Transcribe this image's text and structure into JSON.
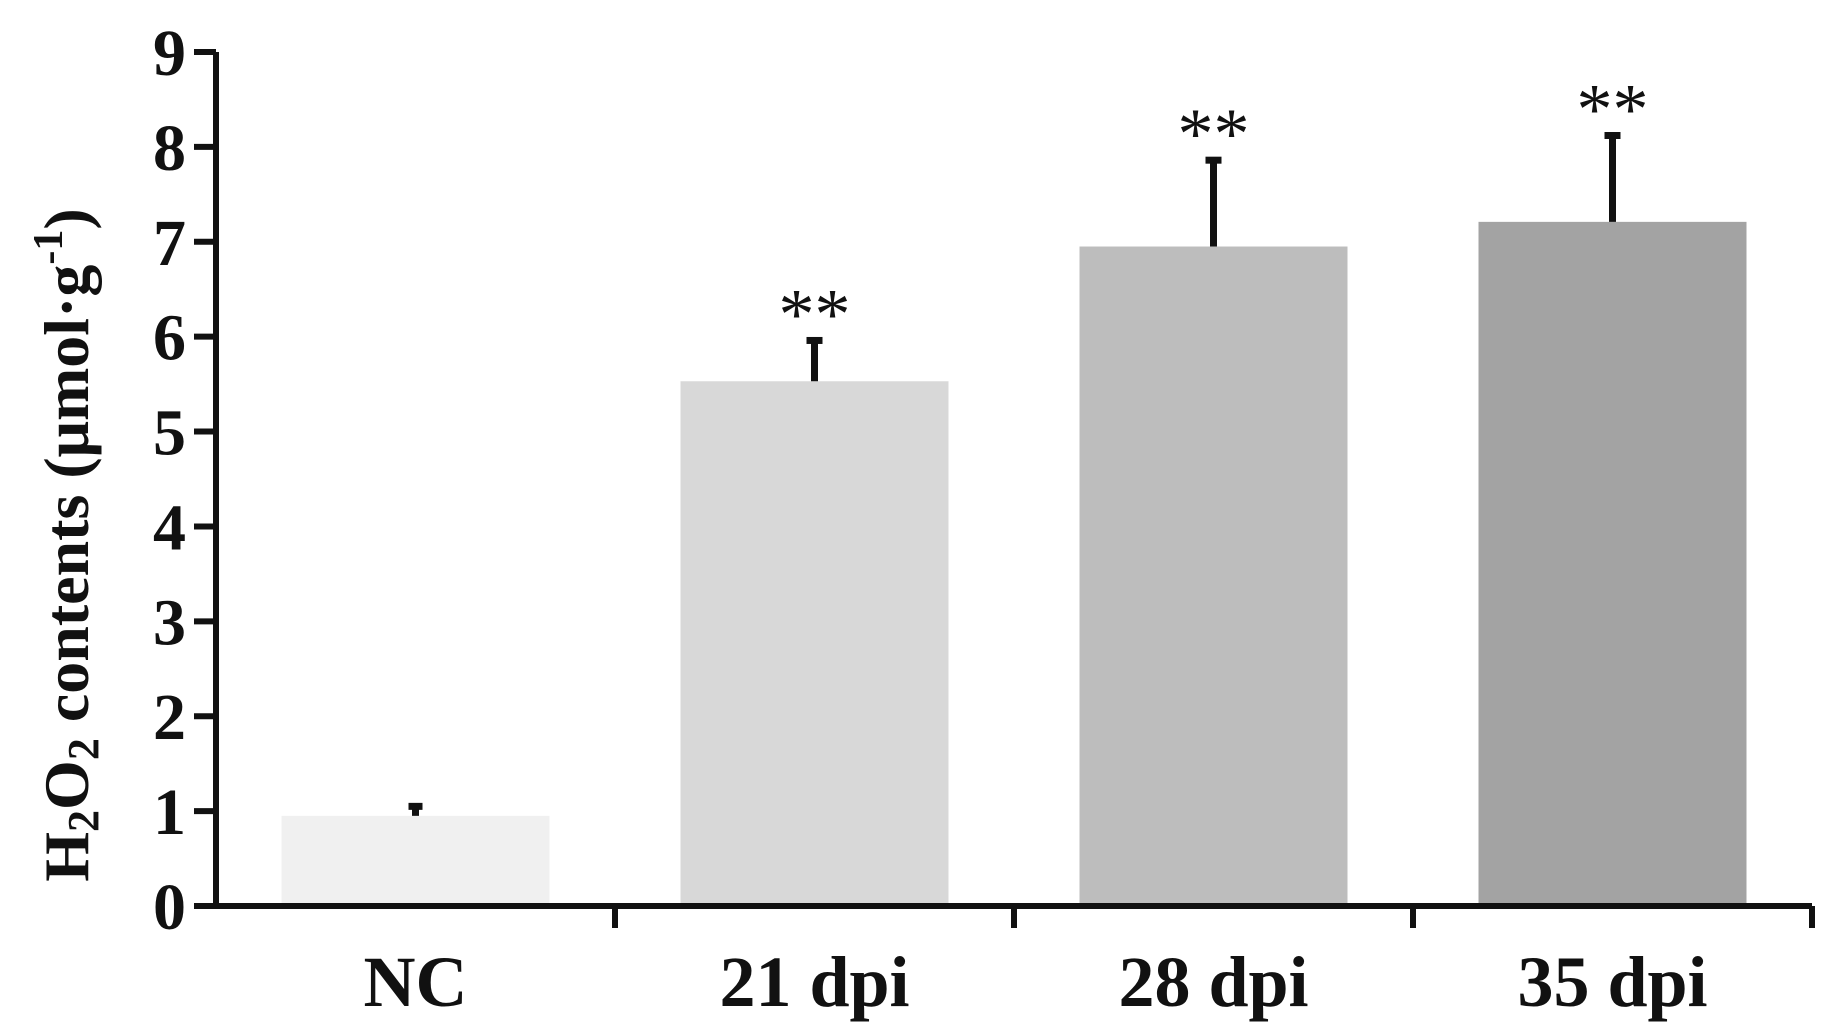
{
  "chart_data": {
    "type": "bar",
    "title": "",
    "categories": [
      "NC",
      "21 dpi",
      "28 dpi",
      "35 dpi"
    ],
    "values": [
      0.95,
      5.53,
      6.95,
      7.21
    ],
    "errors": [
      0.1,
      0.43,
      0.91,
      0.91
    ],
    "significance": [
      "",
      "**",
      "**",
      "**"
    ],
    "bar_colors": [
      "#f0f0f0",
      "#d8d8d8",
      "#bdbdbd",
      "#a3a3a3"
    ],
    "ylabel": {
      "main": "H",
      "sub1": "2",
      "mid": "O",
      "sub2": "2",
      "rest": " contents (μmol·g",
      "sup": "-1",
      "close": ")"
    },
    "xlabel": "",
    "ylim": [
      0,
      9
    ],
    "yticks": [
      "0",
      "1",
      "2",
      "3",
      "4",
      "5",
      "6",
      "7",
      "8",
      "9"
    ],
    "grid": false,
    "legend": "none"
  }
}
